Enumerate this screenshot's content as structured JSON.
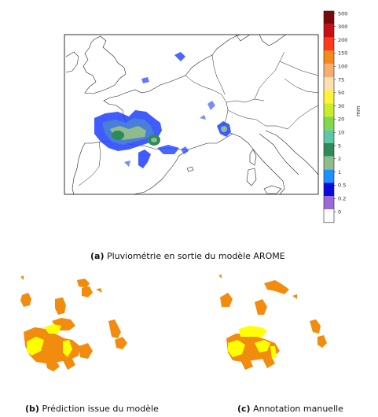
{
  "colorbar": {
    "unit": "mm",
    "levels": [
      "500",
      "300",
      "200",
      "150",
      "100",
      "75",
      "50",
      "30",
      "20",
      "10",
      "5",
      "2",
      "1",
      "0.5",
      "0.2",
      "0"
    ],
    "colors": [
      "#7a0a0a",
      "#c80f14",
      "#ff3a1a",
      "#f58a1c",
      "#f6ae6e",
      "#fde0b2",
      "#fff23a",
      "#c9ec2c",
      "#83d84a",
      "#5ec7a6",
      "#2e8b57",
      "#8fbc8f",
      "#1e90ff",
      "#0a0adf",
      "#9a6ad8",
      "#ffffff"
    ]
  },
  "captions": {
    "a": {
      "label": "(a)",
      "text": "Pluviométrie en sortie du modèle AROME"
    },
    "b": {
      "label": "(b)",
      "text": "Prédiction issue du modèle"
    },
    "c": {
      "label": "(c)",
      "text": "Annotation manuelle"
    }
  },
  "mask_colors": {
    "orange": "#f28c0f",
    "yellow": "#ffff00"
  }
}
